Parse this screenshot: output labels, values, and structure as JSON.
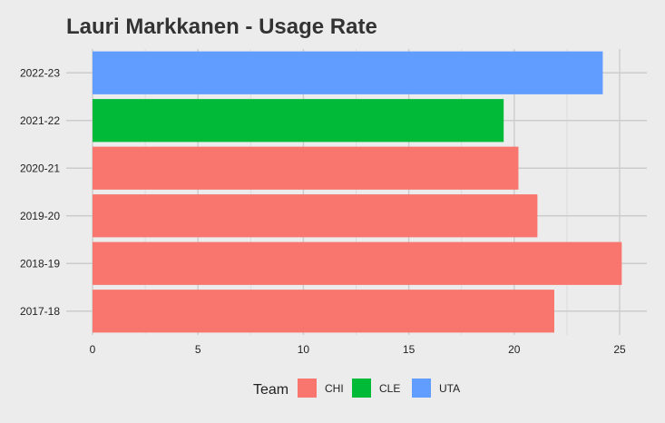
{
  "chart_data": {
    "type": "bar",
    "orientation": "horizontal",
    "title": "Lauri Markkanen - Usage Rate",
    "xlabel": "",
    "ylabel": "",
    "categories": [
      "2017-18",
      "2018-19",
      "2019-20",
      "2020-21",
      "2021-22",
      "2022-23"
    ],
    "values": [
      21.9,
      25.1,
      21.1,
      20.2,
      19.5,
      24.2
    ],
    "teams": [
      "CHI",
      "CHI",
      "CHI",
      "CHI",
      "CLE",
      "UTA"
    ],
    "xlim": [
      0,
      26.3
    ],
    "xticks": [
      0,
      5,
      10,
      15,
      20,
      25
    ],
    "grid": true,
    "legend": {
      "title": "Team",
      "position": "bottom",
      "entries": [
        {
          "label": "CHI",
          "color": "#F8766D"
        },
        {
          "label": "CLE",
          "color": "#00BA38"
        },
        {
          "label": "UTA",
          "color": "#619CFF"
        }
      ]
    }
  }
}
